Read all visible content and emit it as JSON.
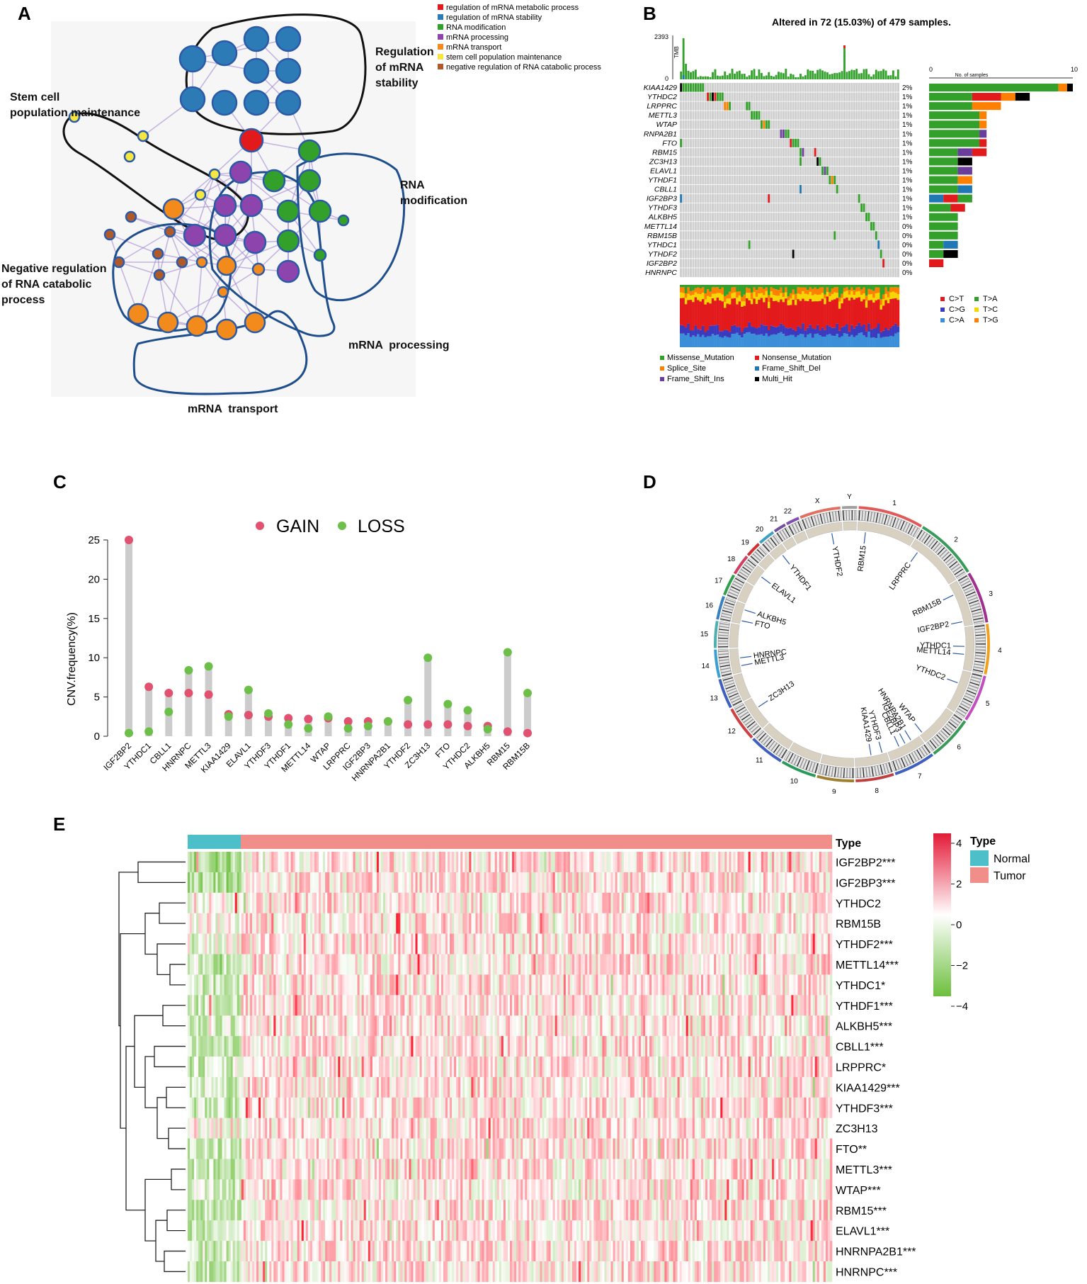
{
  "panels": {
    "a": "A",
    "b": "B",
    "c": "C",
    "d": "D",
    "e": "E"
  },
  "network": {
    "legend": [
      {
        "label": "regulation of mRNA metabolic process",
        "color": "#e31a1c"
      },
      {
        "label": "regulation of mRNA stability",
        "color": "#2c7bb6"
      },
      {
        "label": "RNA modification",
        "color": "#33a02c"
      },
      {
        "label": "mRNA processing",
        "color": "#8e44ad"
      },
      {
        "label": "mRNA transport",
        "color": "#f28a1c"
      },
      {
        "label": "stem cell population maintenance",
        "color": "#f5e642"
      },
      {
        "label": "negative regulation of RNA catabolic process",
        "color": "#b05a2a"
      }
    ],
    "clusters": {
      "stability": [
        "Regulation",
        "of mRNA",
        "stability"
      ],
      "stem": [
        "Stem cell",
        "population maintenance"
      ],
      "rnamod": [
        "RNA",
        "modification"
      ],
      "negreg": [
        "Negative regulation",
        "of RNA catabolic",
        "process"
      ],
      "processing": "mRNA  processing",
      "transport": "mRNA  transport"
    }
  },
  "oncoplot": {
    "title": "Altered in 72 (15.03%) of 479 samples.",
    "tmb_label": "TMB",
    "tmb_max": "2393",
    "tmb_min": "0",
    "nsamples_label": "No. of samples",
    "nsamples_min": "0",
    "nsamples_max": "10",
    "genes": [
      "KIAA1429",
      "YTHDC2",
      "LRPPRC",
      "METTL3",
      "WTAP",
      "RNPA2B1",
      "FTO",
      "RBM15",
      "ZC3H13",
      "ELAVL1",
      "YTHDF1",
      "CBLL1",
      "IGF2BP3",
      "YTHDF3",
      "ALKBH5",
      "METTL14",
      "RBM15B",
      "YTHDC1",
      "YTHDF2",
      "IGF2BP2",
      "HNRNPC"
    ],
    "percents": [
      "2%",
      "1%",
      "1%",
      "1%",
      "1%",
      "1%",
      "1%",
      "1%",
      "1%",
      "1%",
      "1%",
      "1%",
      "1%",
      "1%",
      "1%",
      "0%",
      "0%",
      "0%",
      "0%",
      "0%",
      "0%"
    ],
    "gene_counts": [
      10,
      7,
      5,
      4,
      4,
      4,
      4,
      4,
      3,
      3,
      3,
      3,
      3,
      3,
      2,
      2,
      2,
      2,
      2,
      1,
      0
    ],
    "variant_legend": [
      {
        "label": "Missense_Mutation",
        "color": "#33a02c"
      },
      {
        "label": "Nonsense_Mutation",
        "color": "#e31a1c"
      },
      {
        "label": "Splice_Site",
        "color": "#ff7f00"
      },
      {
        "label": "Frame_Shift_Del",
        "color": "#1f78b4"
      },
      {
        "label": "Frame_Shift_Ins",
        "color": "#6a3d9a"
      },
      {
        "label": "Multi_Hit",
        "color": "#000000"
      }
    ],
    "titv_legend": [
      {
        "label": "C>T",
        "color": "#e31a1c"
      },
      {
        "label": "T>A",
        "color": "#33a02c"
      },
      {
        "label": "C>G",
        "color": "#3a3abf"
      },
      {
        "label": "T>C",
        "color": "#f5d600"
      },
      {
        "label": "C>A",
        "color": "#3b8fd9"
      },
      {
        "label": "T>G",
        "color": "#ff7f00"
      }
    ]
  },
  "chart_data": {
    "type": "scatter",
    "title": "",
    "xlabel": "",
    "ylabel": "CNV.frequency(%)",
    "ylim": [
      0,
      25
    ],
    "yticks": [
      "0",
      "5",
      "10",
      "15",
      "20",
      "25"
    ],
    "legend": [
      {
        "name": "GAIN",
        "color": "#e0526f"
      },
      {
        "name": "LOSS",
        "color": "#6cc04a"
      }
    ],
    "categories": [
      "IGF2BP2",
      "YTHDC1",
      "CBLL1",
      "HNRNPC",
      "METTL3",
      "KIAA1429",
      "ELAVL1",
      "YTHDF3",
      "YTHDF1",
      "METTL14",
      "WTAP",
      "LRPPRC",
      "IGF2BP3",
      "HNRNPA2B1",
      "YTHDF2",
      "ZC3H13",
      "FTO",
      "YTHDC2",
      "ALKBH5",
      "RBM15",
      "RBM15B"
    ],
    "series": [
      {
        "name": "GAIN",
        "values": [
          25,
          6.3,
          5.5,
          5.5,
          5.3,
          2.8,
          2.7,
          2.5,
          2.3,
          2.2,
          2.3,
          1.9,
          1.9,
          1.9,
          1.5,
          1.5,
          1.5,
          1.3,
          1.3,
          0.6,
          0.4
        ]
      },
      {
        "name": "LOSS",
        "values": [
          0.4,
          0.6,
          3.1,
          8.4,
          8.9,
          2.5,
          5.9,
          2.9,
          1.5,
          1.0,
          2.5,
          1.0,
          1.3,
          1.9,
          4.6,
          10.0,
          4.1,
          3.3,
          0.9,
          10.7,
          5.5
        ]
      }
    ]
  },
  "circos": {
    "chromosomes": [
      "1",
      "2",
      "3",
      "4",
      "5",
      "6",
      "7",
      "8",
      "9",
      "10",
      "11",
      "12",
      "13",
      "14",
      "15",
      "16",
      "17",
      "18",
      "19",
      "20",
      "21",
      "22",
      "X",
      "Y"
    ],
    "genes": [
      "YTHDF2",
      "RBM15",
      "LRPPRC",
      "RBM15B",
      "IGF2BP2",
      "YTHDC1",
      "METTL14",
      "YTHDC2",
      "WTAP",
      "HNRNPA2B1",
      "IGF2BP3",
      "CBLL1",
      "YTHDF3",
      "KIAA1429",
      "ZC3H13",
      "METTL3",
      "HNRNPC",
      "FTO",
      "ALKBH5",
      "ELAVL1",
      "YTHDF1"
    ]
  },
  "heatmap": {
    "type_label": "Type",
    "legend_title": "Type",
    "groups": [
      {
        "label": "Normal",
        "color": "#4dbfc9"
      },
      {
        "label": "Tumor",
        "color": "#f28e8a"
      }
    ],
    "scale_ticks": [
      "4",
      "2",
      "0",
      "−2",
      "−4"
    ],
    "genes": [
      "IGF2BP2***",
      "IGF2BP3***",
      "YTHDC2",
      "RBM15B",
      "YTHDF2***",
      "METTL14***",
      "YTHDC1*",
      "YTHDF1***",
      "ALKBH5***",
      "CBLL1***",
      "LRPPRC*",
      "KIAA1429***",
      "YTHDF3***",
      "ZC3H13",
      "FTO**",
      "METTL3***",
      "WTAP***",
      "RBM15***",
      "ELAVL1***",
      "HNRNPA2B1***",
      "HNRNPC***"
    ]
  }
}
